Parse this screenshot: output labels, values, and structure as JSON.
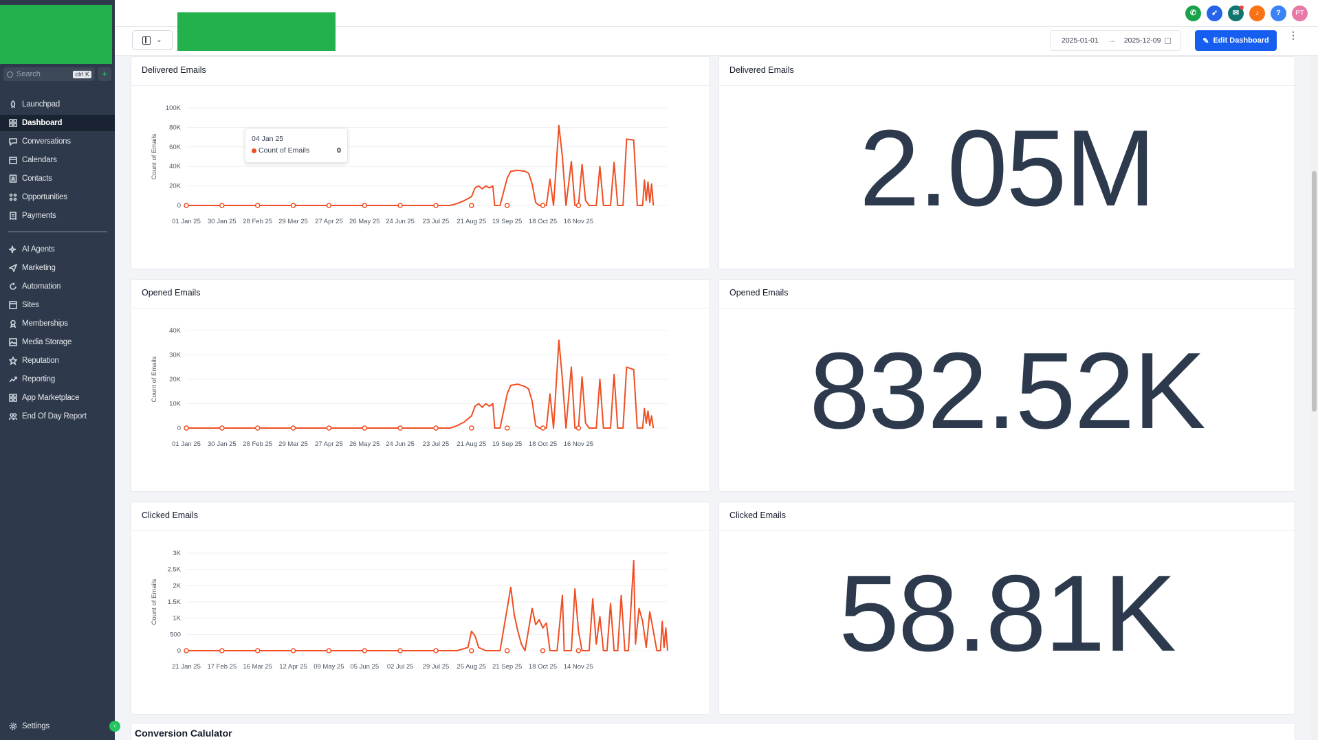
{
  "sidebar": {
    "search_placeholder": "Search",
    "search_shortcut": "ctrl K",
    "add_label": "+",
    "items": [
      {
        "label": "Launchpad",
        "icon": "rocket-icon"
      },
      {
        "label": "Dashboard",
        "icon": "grid-icon",
        "active": true
      },
      {
        "label": "Conversations",
        "icon": "chat-icon"
      },
      {
        "label": "Calendars",
        "icon": "calendar-icon"
      },
      {
        "label": "Contacts",
        "icon": "contacts-icon"
      },
      {
        "label": "Opportunities",
        "icon": "opportunities-icon"
      },
      {
        "label": "Payments",
        "icon": "receipt-icon"
      },
      {
        "label": "AI Agents",
        "icon": "sparkle-icon"
      },
      {
        "label": "Marketing",
        "icon": "send-icon"
      },
      {
        "label": "Automation",
        "icon": "automation-icon"
      },
      {
        "label": "Sites",
        "icon": "sites-icon"
      },
      {
        "label": "Memberships",
        "icon": "membership-icon"
      },
      {
        "label": "Media Storage",
        "icon": "image-icon"
      },
      {
        "label": "Reputation",
        "icon": "star-icon"
      },
      {
        "label": "Reporting",
        "icon": "trend-icon"
      },
      {
        "label": "App Marketplace",
        "icon": "apps-icon"
      },
      {
        "label": "End Of Day Report",
        "icon": "users-icon"
      }
    ],
    "settings_label": "Settings",
    "collapse_label": "‹"
  },
  "topbar": {
    "avatar_initials": "PT",
    "help_label": "?",
    "icon_colors": {
      "phone": "#16a34a",
      "rocket": "#2563eb",
      "megaphone": "#0f766e",
      "bell": "#f97316",
      "help": "#3b82f6",
      "avatar": "#e879a6"
    }
  },
  "toolbar": {
    "date_start": "2025-01-01",
    "date_end": "2025-12-09",
    "edit_label": "Edit Dashboard",
    "more_label": "⋮"
  },
  "colors": {
    "line": "#f04e23",
    "accent": "#155eef",
    "brand_green": "#22b14c"
  },
  "cards": {
    "delivered_chart": {
      "title": "Delivered Emails"
    },
    "delivered_stat": {
      "title": "Delivered Emails",
      "value": "2.05M"
    },
    "opened_chart": {
      "title": "Opened Emails"
    },
    "opened_stat": {
      "title": "Opened Emails",
      "value": "832.52K"
    },
    "clicked_chart": {
      "title": "Clicked Emails"
    },
    "clicked_stat": {
      "title": "Clicked Emails",
      "value": "58.81K"
    }
  },
  "tooltip": {
    "date": "04 Jan 25",
    "series": "Count of Emails",
    "value": "0"
  },
  "conversion": {
    "title": "Conversion Calulator"
  },
  "chart_data": [
    {
      "type": "line",
      "title": "Delivered Emails",
      "ylabel": "Count of Emails",
      "yticks": [
        "0",
        "20K",
        "40K",
        "60K",
        "80K",
        "100K"
      ],
      "ylim": [
        0,
        100000
      ],
      "xticks": [
        "01 Jan 25",
        "30 Jan 25",
        "28 Feb 25",
        "29 Mar 25",
        "27 Apr 25",
        "26 May 25",
        "24 Jun 25",
        "23 Jul 25",
        "21 Aug 25",
        "19 Sep 25",
        "18 Oct 25",
        "16 Nov 25"
      ],
      "points": [
        [
          0,
          0
        ],
        [
          0.5,
          0
        ],
        [
          1,
          0
        ],
        [
          1.5,
          0
        ],
        [
          2,
          0
        ],
        [
          2.5,
          0
        ],
        [
          3,
          0
        ],
        [
          3.5,
          0
        ],
        [
          4,
          0
        ],
        [
          4.5,
          0
        ],
        [
          5,
          0
        ],
        [
          5.5,
          0
        ],
        [
          6,
          0
        ],
        [
          6.5,
          0
        ],
        [
          7,
          0
        ],
        [
          7.4,
          0
        ],
        [
          7.6,
          2000
        ],
        [
          7.8,
          5000
        ],
        [
          8,
          9000
        ],
        [
          8.1,
          18000
        ],
        [
          8.2,
          20000
        ],
        [
          8.3,
          17000
        ],
        [
          8.4,
          20000
        ],
        [
          8.5,
          18000
        ],
        [
          8.6,
          20000
        ],
        [
          8.65,
          0
        ],
        [
          8.8,
          0
        ],
        [
          9,
          28000
        ],
        [
          9.1,
          35000
        ],
        [
          9.3,
          36000
        ],
        [
          9.5,
          35000
        ],
        [
          9.6,
          33000
        ],
        [
          9.7,
          22000
        ],
        [
          9.8,
          3000
        ],
        [
          9.9,
          0
        ],
        [
          10.1,
          0
        ],
        [
          10.2,
          27000
        ],
        [
          10.3,
          0
        ],
        [
          10.45,
          82000
        ],
        [
          10.55,
          50000
        ],
        [
          10.65,
          0
        ],
        [
          10.8,
          45000
        ],
        [
          10.9,
          0
        ],
        [
          11.0,
          0
        ],
        [
          11.1,
          42000
        ],
        [
          11.2,
          5000
        ],
        [
          11.3,
          0
        ],
        [
          11.5,
          0
        ],
        [
          11.6,
          40000
        ],
        [
          11.7,
          0
        ],
        [
          11.9,
          0
        ],
        [
          12.0,
          44000
        ],
        [
          12.1,
          0
        ],
        [
          12.25,
          0
        ],
        [
          12.35,
          68000
        ],
        [
          12.55,
          67000
        ],
        [
          12.65,
          0
        ],
        [
          12.8,
          0
        ],
        [
          12.85,
          26000
        ],
        [
          12.9,
          5000
        ],
        [
          12.95,
          24000
        ],
        [
          13.0,
          3000
        ],
        [
          13.05,
          22000
        ],
        [
          13.1,
          0
        ]
      ],
      "markers": [
        0,
        1,
        2,
        3,
        4,
        5,
        6,
        7,
        8,
        9,
        10,
        11
      ]
    },
    {
      "type": "line",
      "title": "Opened Emails",
      "ylabel": "Count of Emails",
      "yticks": [
        "0",
        "10K",
        "20K",
        "30K",
        "40K"
      ],
      "ylim": [
        0,
        40000
      ],
      "xticks": [
        "01 Jan 25",
        "30 Jan 25",
        "28 Feb 25",
        "29 Mar 25",
        "27 Apr 25",
        "26 May 25",
        "24 Jun 25",
        "23 Jul 25",
        "21 Aug 25",
        "19 Sep 25",
        "18 Oct 25",
        "16 Nov 25"
      ],
      "points": [
        [
          0,
          0
        ],
        [
          1,
          0
        ],
        [
          2,
          0
        ],
        [
          3,
          0
        ],
        [
          4,
          0
        ],
        [
          5,
          0
        ],
        [
          6,
          0
        ],
        [
          7,
          0
        ],
        [
          7.4,
          0
        ],
        [
          7.6,
          1000
        ],
        [
          7.8,
          2500
        ],
        [
          8,
          5000
        ],
        [
          8.1,
          9000
        ],
        [
          8.2,
          10000
        ],
        [
          8.3,
          8500
        ],
        [
          8.4,
          10000
        ],
        [
          8.5,
          9000
        ],
        [
          8.6,
          10000
        ],
        [
          8.65,
          0
        ],
        [
          8.8,
          0
        ],
        [
          9,
          14000
        ],
        [
          9.1,
          17500
        ],
        [
          9.3,
          18000
        ],
        [
          9.5,
          17000
        ],
        [
          9.6,
          16000
        ],
        [
          9.7,
          11000
        ],
        [
          9.8,
          1000
        ],
        [
          9.9,
          0
        ],
        [
          10.1,
          0
        ],
        [
          10.2,
          14000
        ],
        [
          10.3,
          0
        ],
        [
          10.45,
          36000
        ],
        [
          10.55,
          20000
        ],
        [
          10.65,
          0
        ],
        [
          10.8,
          25000
        ],
        [
          10.9,
          0
        ],
        [
          11.0,
          0
        ],
        [
          11.1,
          21000
        ],
        [
          11.2,
          2000
        ],
        [
          11.3,
          0
        ],
        [
          11.5,
          0
        ],
        [
          11.6,
          20000
        ],
        [
          11.7,
          0
        ],
        [
          11.9,
          0
        ],
        [
          12.0,
          22000
        ],
        [
          12.1,
          0
        ],
        [
          12.25,
          0
        ],
        [
          12.35,
          25000
        ],
        [
          12.55,
          24000
        ],
        [
          12.65,
          0
        ],
        [
          12.8,
          0
        ],
        [
          12.85,
          8000
        ],
        [
          12.9,
          2000
        ],
        [
          12.95,
          7000
        ],
        [
          13.0,
          1000
        ],
        [
          13.05,
          5000
        ],
        [
          13.1,
          0
        ]
      ],
      "markers": [
        0,
        1,
        2,
        3,
        4,
        5,
        6,
        7,
        8,
        9,
        10,
        11
      ]
    },
    {
      "type": "line",
      "title": "Clicked Emails",
      "ylabel": "Count of Emails",
      "yticks": [
        "0",
        "500",
        "1K",
        "1.5K",
        "2K",
        "2.5K",
        "3K"
      ],
      "ylim": [
        0,
        3000
      ],
      "xticks": [
        "21 Jan 25",
        "17 Feb 25",
        "16 Mar 25",
        "12 Apr 25",
        "09 May 25",
        "05 Jun 25",
        "02 Jul 25",
        "29 Jul 25",
        "25 Aug 25",
        "21 Sep 25",
        "18 Oct 25",
        "14 Nov 25"
      ],
      "points": [
        [
          0,
          0
        ],
        [
          1,
          0
        ],
        [
          2,
          0
        ],
        [
          3,
          0
        ],
        [
          4,
          0
        ],
        [
          5,
          0
        ],
        [
          6,
          0
        ],
        [
          7,
          0
        ],
        [
          7.6,
          0
        ],
        [
          7.9,
          100
        ],
        [
          8.0,
          600
        ],
        [
          8.1,
          450
        ],
        [
          8.2,
          100
        ],
        [
          8.4,
          0
        ],
        [
          8.6,
          0
        ],
        [
          8.8,
          0
        ],
        [
          9.1,
          1950
        ],
        [
          9.2,
          1100
        ],
        [
          9.3,
          600
        ],
        [
          9.4,
          200
        ],
        [
          9.5,
          0
        ],
        [
          9.7,
          1300
        ],
        [
          9.8,
          800
        ],
        [
          9.9,
          950
        ],
        [
          10.0,
          700
        ],
        [
          10.1,
          850
        ],
        [
          10.2,
          0
        ],
        [
          10.4,
          0
        ],
        [
          10.55,
          1700
        ],
        [
          10.6,
          0
        ],
        [
          10.8,
          0
        ],
        [
          10.9,
          1900
        ],
        [
          11.0,
          600
        ],
        [
          11.1,
          0
        ],
        [
          11.3,
          0
        ],
        [
          11.4,
          1600
        ],
        [
          11.5,
          200
        ],
        [
          11.6,
          1050
        ],
        [
          11.7,
          0
        ],
        [
          11.8,
          0
        ],
        [
          11.9,
          1450
        ],
        [
          12.0,
          0
        ],
        [
          12.1,
          0
        ],
        [
          12.2,
          1700
        ],
        [
          12.3,
          0
        ],
        [
          12.4,
          0
        ],
        [
          12.55,
          2770
        ],
        [
          12.6,
          200
        ],
        [
          12.7,
          1300
        ],
        [
          12.8,
          900
        ],
        [
          12.9,
          100
        ],
        [
          13.0,
          1200
        ],
        [
          13.1,
          600
        ],
        [
          13.2,
          0
        ],
        [
          13.3,
          0
        ],
        [
          13.35,
          900
        ],
        [
          13.4,
          100
        ],
        [
          13.45,
          700
        ],
        [
          13.5,
          0
        ]
      ],
      "markers": [
        0,
        1,
        2,
        3,
        4,
        5,
        6,
        7,
        8,
        9,
        10,
        11
      ]
    }
  ]
}
